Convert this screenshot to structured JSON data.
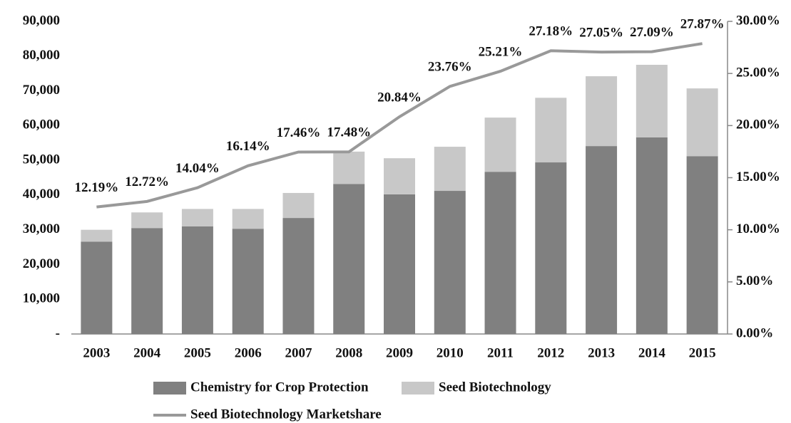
{
  "chart_data": {
    "type": "bar",
    "stacked": true,
    "categories": [
      "2003",
      "2004",
      "2005",
      "2006",
      "2007",
      "2008",
      "2009",
      "2010",
      "2011",
      "2012",
      "2013",
      "2014",
      "2015"
    ],
    "series": [
      {
        "name": "Chemistry for Crop Protection",
        "color": "#808080",
        "values": [
          26600,
          30500,
          31000,
          30300,
          33400,
          43200,
          40200,
          41200,
          46700,
          49400,
          54100,
          56600,
          51200
        ]
      },
      {
        "name": "Seed Biotechnology",
        "color": "#c8c8c8",
        "values": [
          3400,
          4500,
          5000,
          5700,
          7200,
          9300,
          10400,
          12700,
          15600,
          18600,
          20100,
          20900,
          19500
        ]
      },
      {
        "name": "Seed Biotechnology Marketshare",
        "color": "#999999",
        "axis": "y2",
        "values": [
          12.19,
          12.72,
          14.04,
          16.14,
          17.46,
          17.48,
          20.84,
          23.76,
          25.21,
          27.18,
          27.05,
          27.09,
          27.87
        ],
        "value_labels": [
          "12.19%",
          "12.72%",
          "14.04%",
          "16.14%",
          "17.46%",
          "17.48%",
          "20.84%",
          "23.76%",
          "25.21%",
          "27.18%",
          "27.05%",
          "27.09%",
          "27.87%"
        ]
      }
    ],
    "ylim": [
      0,
      90000
    ],
    "yticks": [
      {
        "value": 0,
        "label": "-"
      },
      {
        "value": 10000,
        "label": "10,000"
      },
      {
        "value": 20000,
        "label": "20,000"
      },
      {
        "value": 30000,
        "label": "30,000"
      },
      {
        "value": 40000,
        "label": "40,000"
      },
      {
        "value": 50000,
        "label": "50,000"
      },
      {
        "value": 60000,
        "label": "60,000"
      },
      {
        "value": 70000,
        "label": "70,000"
      },
      {
        "value": 80000,
        "label": "80,000"
      },
      {
        "value": 90000,
        "label": "90,000"
      }
    ],
    "y2lim": [
      0,
      30
    ],
    "y2ticks": [
      {
        "value": 0,
        "label": "0.00%"
      },
      {
        "value": 5,
        "label": "5.00%"
      },
      {
        "value": 10,
        "label": "10.00%"
      },
      {
        "value": 15,
        "label": "15.00%"
      },
      {
        "value": 20,
        "label": "20.00%"
      },
      {
        "value": 25,
        "label": "25.00%"
      },
      {
        "value": 30,
        "label": "30.00%"
      }
    ],
    "grid": false,
    "legend": "bottom"
  }
}
